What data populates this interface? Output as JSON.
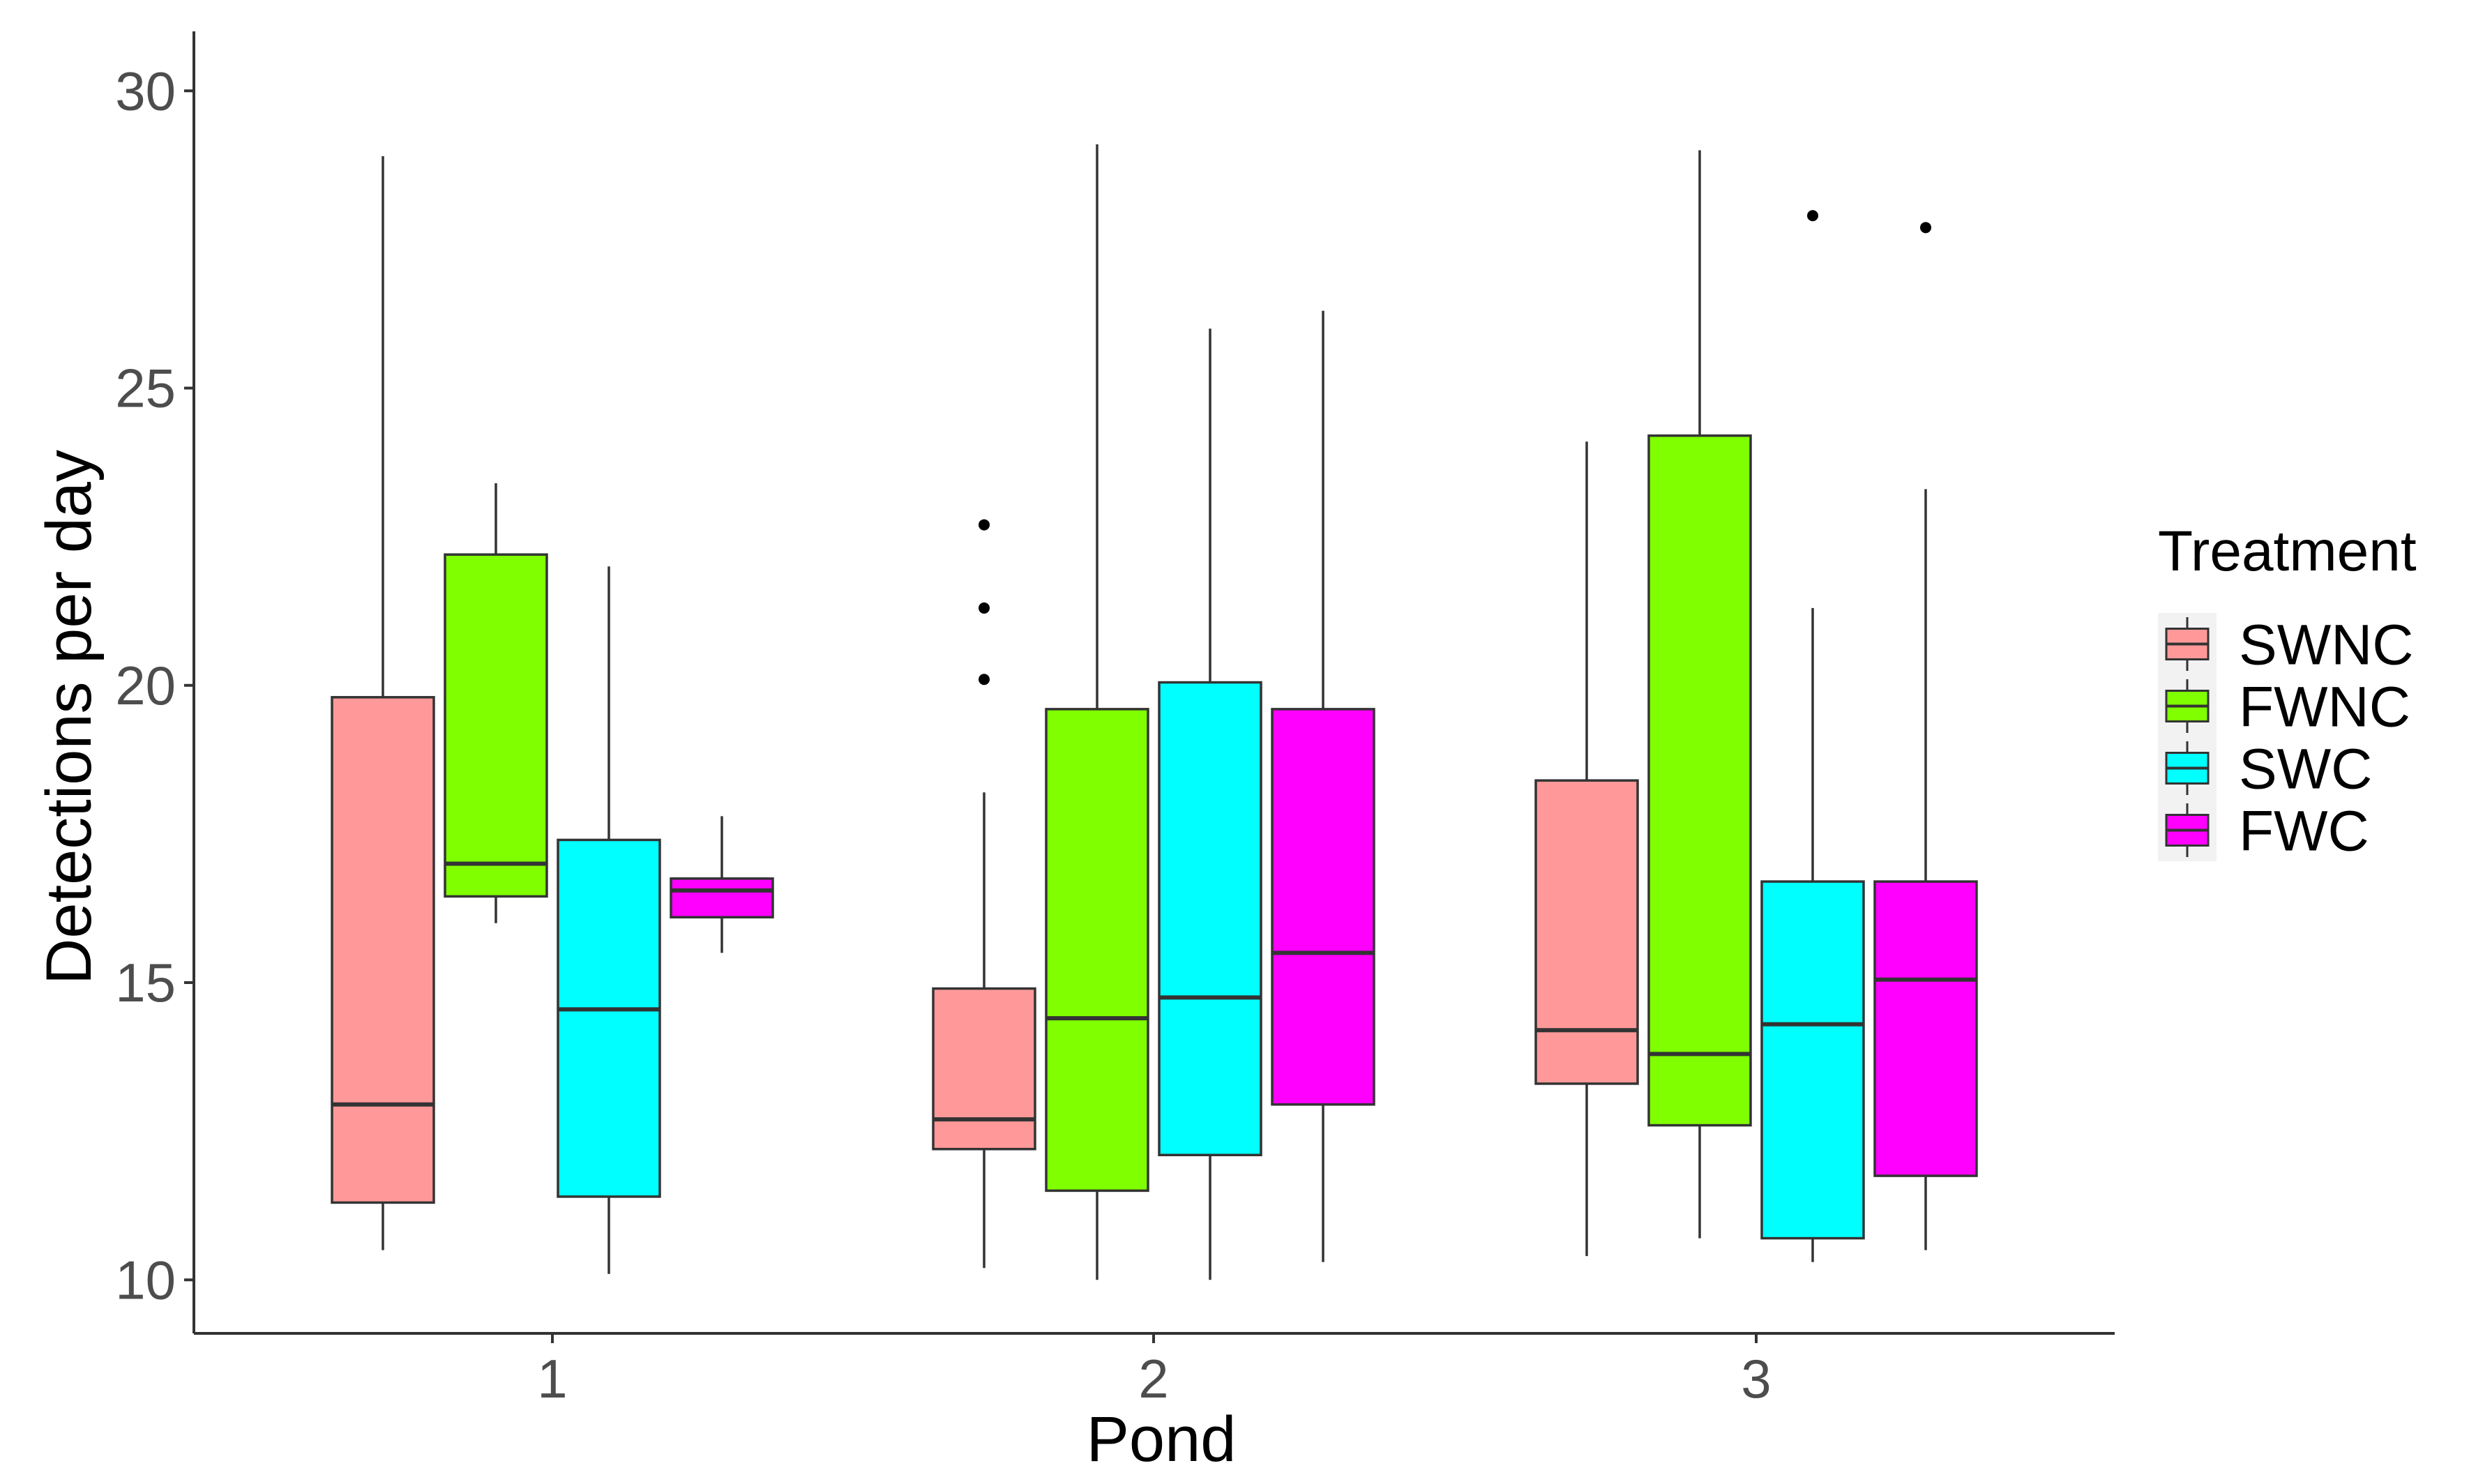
{
  "chart_data": {
    "type": "boxplot",
    "title": "",
    "xlabel": "Pond",
    "ylabel": "Detections per day",
    "ylim": [
      9.1,
      31.0
    ],
    "yticks": [
      10,
      15,
      20,
      25,
      30
    ],
    "grid": false,
    "categories": [
      "1",
      "2",
      "3"
    ],
    "legend": {
      "title": "Treatment",
      "position": "right",
      "entries": [
        "SWNC",
        "FWNC",
        "SWC",
        "FWC"
      ]
    },
    "series": [
      {
        "name": "SWNC",
        "color": "#ff9999",
        "boxes": [
          {
            "pond": "1",
            "min": 10.5,
            "q1": 11.3,
            "median": 12.95,
            "q3": 19.8,
            "max": 28.9,
            "outliers": []
          },
          {
            "pond": "2",
            "min": 10.2,
            "q1": 12.2,
            "median": 12.7,
            "q3": 14.9,
            "max": 18.2,
            "outliers": [
              20.1,
              21.3,
              22.7
            ]
          },
          {
            "pond": "3",
            "min": 10.4,
            "q1": 13.3,
            "median": 14.2,
            "q3": 18.4,
            "max": 24.1,
            "outliers": []
          }
        ]
      },
      {
        "name": "FWNC",
        "color": "#7fff00",
        "boxes": [
          {
            "pond": "1",
            "min": 16.0,
            "q1": 16.45,
            "median": 17.0,
            "q3": 22.2,
            "max": 23.4,
            "outliers": []
          },
          {
            "pond": "2",
            "min": 10.0,
            "q1": 11.5,
            "median": 14.4,
            "q3": 19.6,
            "max": 29.1,
            "outliers": []
          },
          {
            "pond": "3",
            "min": 10.7,
            "q1": 12.6,
            "median": 13.8,
            "q3": 24.2,
            "max": 29.0,
            "outliers": []
          }
        ]
      },
      {
        "name": "SWC",
        "color": "#00ffff",
        "boxes": [
          {
            "pond": "1",
            "min": 10.1,
            "q1": 11.4,
            "median": 14.55,
            "q3": 17.4,
            "max": 22.0,
            "outliers": []
          },
          {
            "pond": "2",
            "min": 10.0,
            "q1": 12.1,
            "median": 14.75,
            "q3": 20.05,
            "max": 26.0,
            "outliers": []
          },
          {
            "pond": "3",
            "min": 10.3,
            "q1": 10.7,
            "median": 14.3,
            "q3": 16.7,
            "max": 21.3,
            "outliers": [
              27.9
            ]
          }
        ]
      },
      {
        "name": "FWC",
        "color": "#ff00ff",
        "boxes": [
          {
            "pond": "1",
            "min": 15.5,
            "q1": 16.1,
            "median": 16.55,
            "q3": 16.75,
            "max": 17.8,
            "outliers": []
          },
          {
            "pond": "2",
            "min": 10.3,
            "q1": 12.95,
            "median": 15.5,
            "q3": 19.6,
            "max": 26.3,
            "outliers": []
          },
          {
            "pond": "3",
            "min": 10.5,
            "q1": 11.75,
            "median": 15.05,
            "q3": 16.7,
            "max": 23.3,
            "outliers": [
              27.7
            ]
          }
        ]
      }
    ]
  }
}
